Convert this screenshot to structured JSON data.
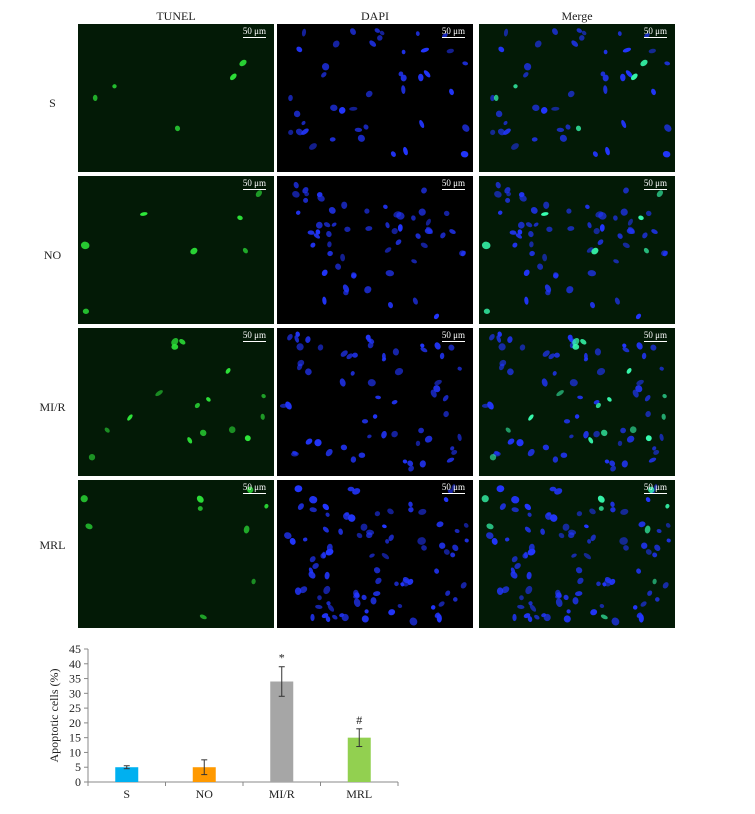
{
  "figure": {
    "columns": [
      "TUNEL",
      "DAPI",
      "Merge"
    ],
    "rows": [
      "S",
      "NO",
      "MI/R",
      "MRL"
    ],
    "scale_bar": "50 μm",
    "nuclei_density": {
      "tunel": [
        5,
        7,
        16,
        9
      ],
      "dapi": [
        42,
        58,
        62,
        92
      ]
    },
    "colors": {
      "tunel": "#2ee83a",
      "dapi": "#2236ff",
      "panel_bg": "#000000"
    }
  },
  "chart_data": {
    "type": "bar",
    "categories": [
      "S",
      "NO",
      "MI/R",
      "MRL"
    ],
    "values": [
      5,
      5,
      34,
      15
    ],
    "error": [
      0.5,
      2.5,
      5,
      3
    ],
    "annotations": [
      "",
      "",
      "*",
      "#"
    ],
    "colors": [
      "#00b0f0",
      "#ff9900",
      "#a6a6a6",
      "#92d050"
    ],
    "ylabel": "Apoptotic cells (%)",
    "xlabel": "",
    "ylim": [
      0,
      45
    ],
    "yticks": [
      0,
      5,
      10,
      15,
      20,
      25,
      30,
      35,
      40,
      45
    ],
    "grid": false
  }
}
